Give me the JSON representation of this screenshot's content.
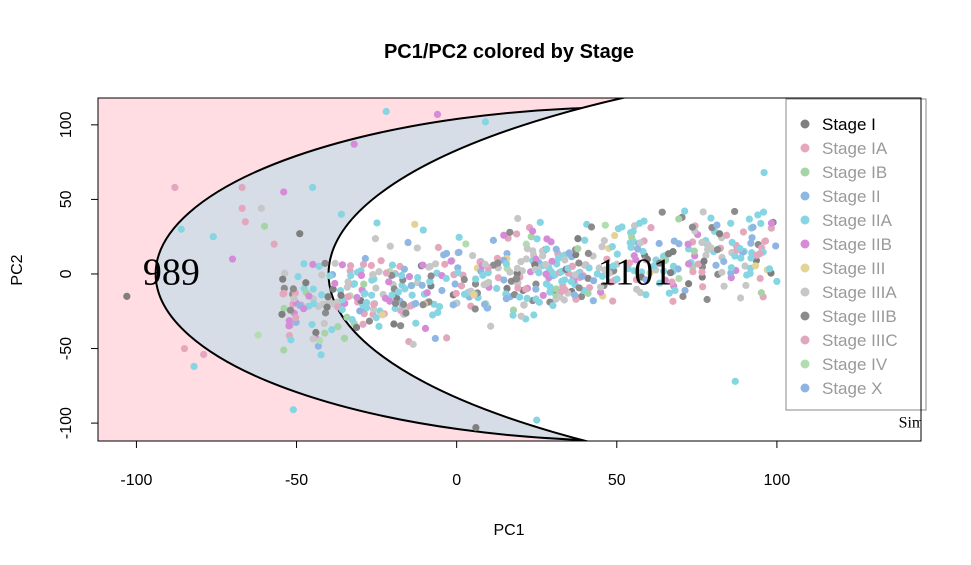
{
  "chart_data": {
    "type": "scatter",
    "title": "PC1/PC2 colored by Stage",
    "xlabel": "PC1",
    "ylabel": "PC2",
    "xlim": [
      -112,
      145
    ],
    "ylim": [
      -112,
      118
    ],
    "x_ticks": [
      -100,
      -50,
      0,
      50,
      100
    ],
    "y_ticks": [
      -100,
      -50,
      0,
      50,
      100
    ],
    "grid": false,
    "legend_position": "top-right",
    "legend": [
      {
        "label": "Stage I",
        "color": "#7f7f7f"
      },
      {
        "label": "Stage IA",
        "color": "#e6a7bd"
      },
      {
        "label": "Stage IB",
        "color": "#a6d4a6"
      },
      {
        "label": "Stage II",
        "color": "#8fb7e3"
      },
      {
        "label": "Stage IIA",
        "color": "#86d5e3"
      },
      {
        "label": "Stage IIB",
        "color": "#d58bd8"
      },
      {
        "label": "Stage III",
        "color": "#e3d394"
      },
      {
        "label": "Stage IIIA",
        "color": "#c7c7c7"
      },
      {
        "label": "Stage IIIB",
        "color": "#8c8c8c"
      },
      {
        "label": "Stage IIIC",
        "color": "#e0a7bf"
      },
      {
        "label": "Stage IV",
        "color": "#b3ddb0"
      },
      {
        "label": "Stage X",
        "color": "#8fb4e3"
      }
    ],
    "regions": [
      {
        "label": "989",
        "cx": -35,
        "cy": 42,
        "rx": 190,
        "ry": 170,
        "fill": "#ffdde3",
        "label_at": [
          -98,
          -7
        ]
      },
      {
        "label": "1101",
        "cx": 56,
        "cy": 0,
        "rx": 150,
        "ry": 112,
        "fill": "#d2dce6",
        "label_at": [
          44,
          -7
        ]
      },
      {
        "label": "Simp",
        "cx": 200,
        "cy": 0,
        "rx": 240,
        "ry": 150,
        "fill": "#ffffff",
        "label_at": [
          138,
          -103
        ]
      }
    ],
    "highlight_points": [
      {
        "x": -103,
        "y": -15,
        "stage": "Stage I"
      },
      {
        "x": -88,
        "y": 58,
        "stage": "Stage IIIC"
      },
      {
        "x": -86,
        "y": 30,
        "stage": "Stage IIA"
      },
      {
        "x": -85,
        "y": -50,
        "stage": "Stage IA"
      },
      {
        "x": -82,
        "y": -62,
        "stage": "Stage IIA"
      },
      {
        "x": -79,
        "y": -54,
        "stage": "Stage IIIC"
      },
      {
        "x": -76,
        "y": 25,
        "stage": "Stage IIA"
      },
      {
        "x": -70,
        "y": 10,
        "stage": "Stage IIB"
      },
      {
        "x": -67,
        "y": 58,
        "stage": "Stage IIIC"
      },
      {
        "x": -67,
        "y": 44,
        "stage": "Stage IA"
      },
      {
        "x": -66,
        "y": 35,
        "stage": "Stage IIIC"
      },
      {
        "x": -62,
        "y": -41,
        "stage": "Stage IV"
      },
      {
        "x": -61,
        "y": 44,
        "stage": "Stage IIIA"
      },
      {
        "x": -60,
        "y": 32,
        "stage": "Stage IB"
      },
      {
        "x": -57,
        "y": 20,
        "stage": "Stage IIIC"
      },
      {
        "x": -54,
        "y": 55,
        "stage": "Stage IIB"
      },
      {
        "x": -54,
        "y": -51,
        "stage": "Stage IB"
      },
      {
        "x": -51,
        "y": -91,
        "stage": "Stage IIA"
      },
      {
        "x": -49,
        "y": 27,
        "stage": "Stage I"
      },
      {
        "x": -45,
        "y": 58,
        "stage": "Stage IIA"
      },
      {
        "x": -36,
        "y": 40,
        "stage": "Stage IIA"
      },
      {
        "x": -32,
        "y": 87,
        "stage": "Stage IIB"
      },
      {
        "x": -22,
        "y": 109,
        "stage": "Stage IIA"
      },
      {
        "x": -6,
        "y": 107,
        "stage": "Stage IIB"
      },
      {
        "x": 9,
        "y": 102,
        "stage": "Stage IIA"
      },
      {
        "x": 6,
        "y": -103,
        "stage": "Stage I"
      },
      {
        "x": 25,
        "y": -98,
        "stage": "Stage IIA"
      },
      {
        "x": 87,
        "y": -72,
        "stage": "Stage IIA"
      },
      {
        "x": 100,
        "y": -5,
        "stage": "Stage IIA"
      },
      {
        "x": 96,
        "y": 68,
        "stage": "Stage IIA"
      }
    ],
    "point_cloud": {
      "n": 620,
      "seed": 7,
      "x_range": [
        -55,
        100
      ],
      "y_range": [
        -75,
        75
      ],
      "note_trend": "cloud rises toward upper-right"
    }
  }
}
